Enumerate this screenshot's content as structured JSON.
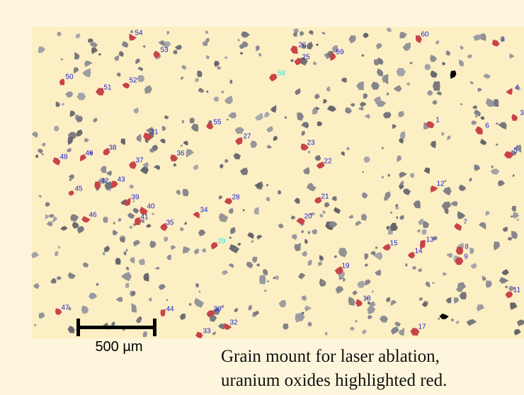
{
  "labels": [
    "1",
    "2",
    "3",
    "4",
    "5",
    "6",
    "7",
    "8",
    "9",
    "11",
    "12",
    "13",
    "14",
    "15",
    "17",
    "18",
    "19",
    "20",
    "21",
    "22",
    "23",
    "25",
    "26",
    "27",
    "28",
    "29",
    "30",
    "31",
    "32",
    "33",
    "34",
    "35",
    "36",
    "37",
    "38",
    "39",
    "40",
    "41",
    "42",
    "43",
    "44",
    "45",
    "46",
    "47",
    "48",
    "49",
    "50",
    "51",
    "52",
    "53",
    "54",
    "55",
    "58",
    "59",
    "60"
  ],
  "scale_bar": "500 µm",
  "caption": [
    "Grain mount for laser ablation,",
    "uranium oxides highlighted red."
  ]
}
